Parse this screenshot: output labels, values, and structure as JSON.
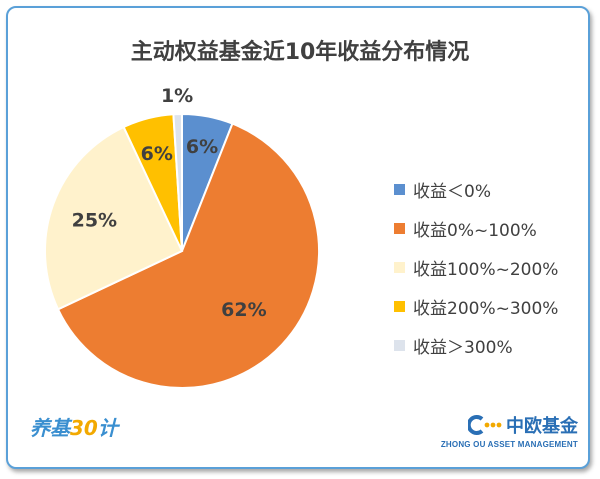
{
  "chart_data": {
    "type": "pie",
    "title": "主动权益基金近10年收益分布情况",
    "legend_position": "right",
    "slices": [
      {
        "name": "收益＜0%",
        "value": 6,
        "label": "6%",
        "color": "#5b8fcf"
      },
      {
        "name": "收益0%~100%",
        "value": 62,
        "label": "62%",
        "color": "#ed7d31"
      },
      {
        "name": "收益100%~200%",
        "value": 25,
        "label": "25%",
        "color": "#fff2cc"
      },
      {
        "name": "收益200%~300%",
        "value": 6,
        "label": "6%",
        "color": "#ffc000"
      },
      {
        "name": "收益＞300%",
        "value": 1,
        "label": "1%",
        "color": "#dde3ec"
      }
    ]
  },
  "branding": {
    "left_logo_text": "养基",
    "left_logo_num": "30",
    "left_logo_tail": "计",
    "right_logo_cn": "中欧基金",
    "right_logo_en": "ZHONG OU ASSET MANAGEMENT",
    "accent": "#2a6fb5"
  }
}
